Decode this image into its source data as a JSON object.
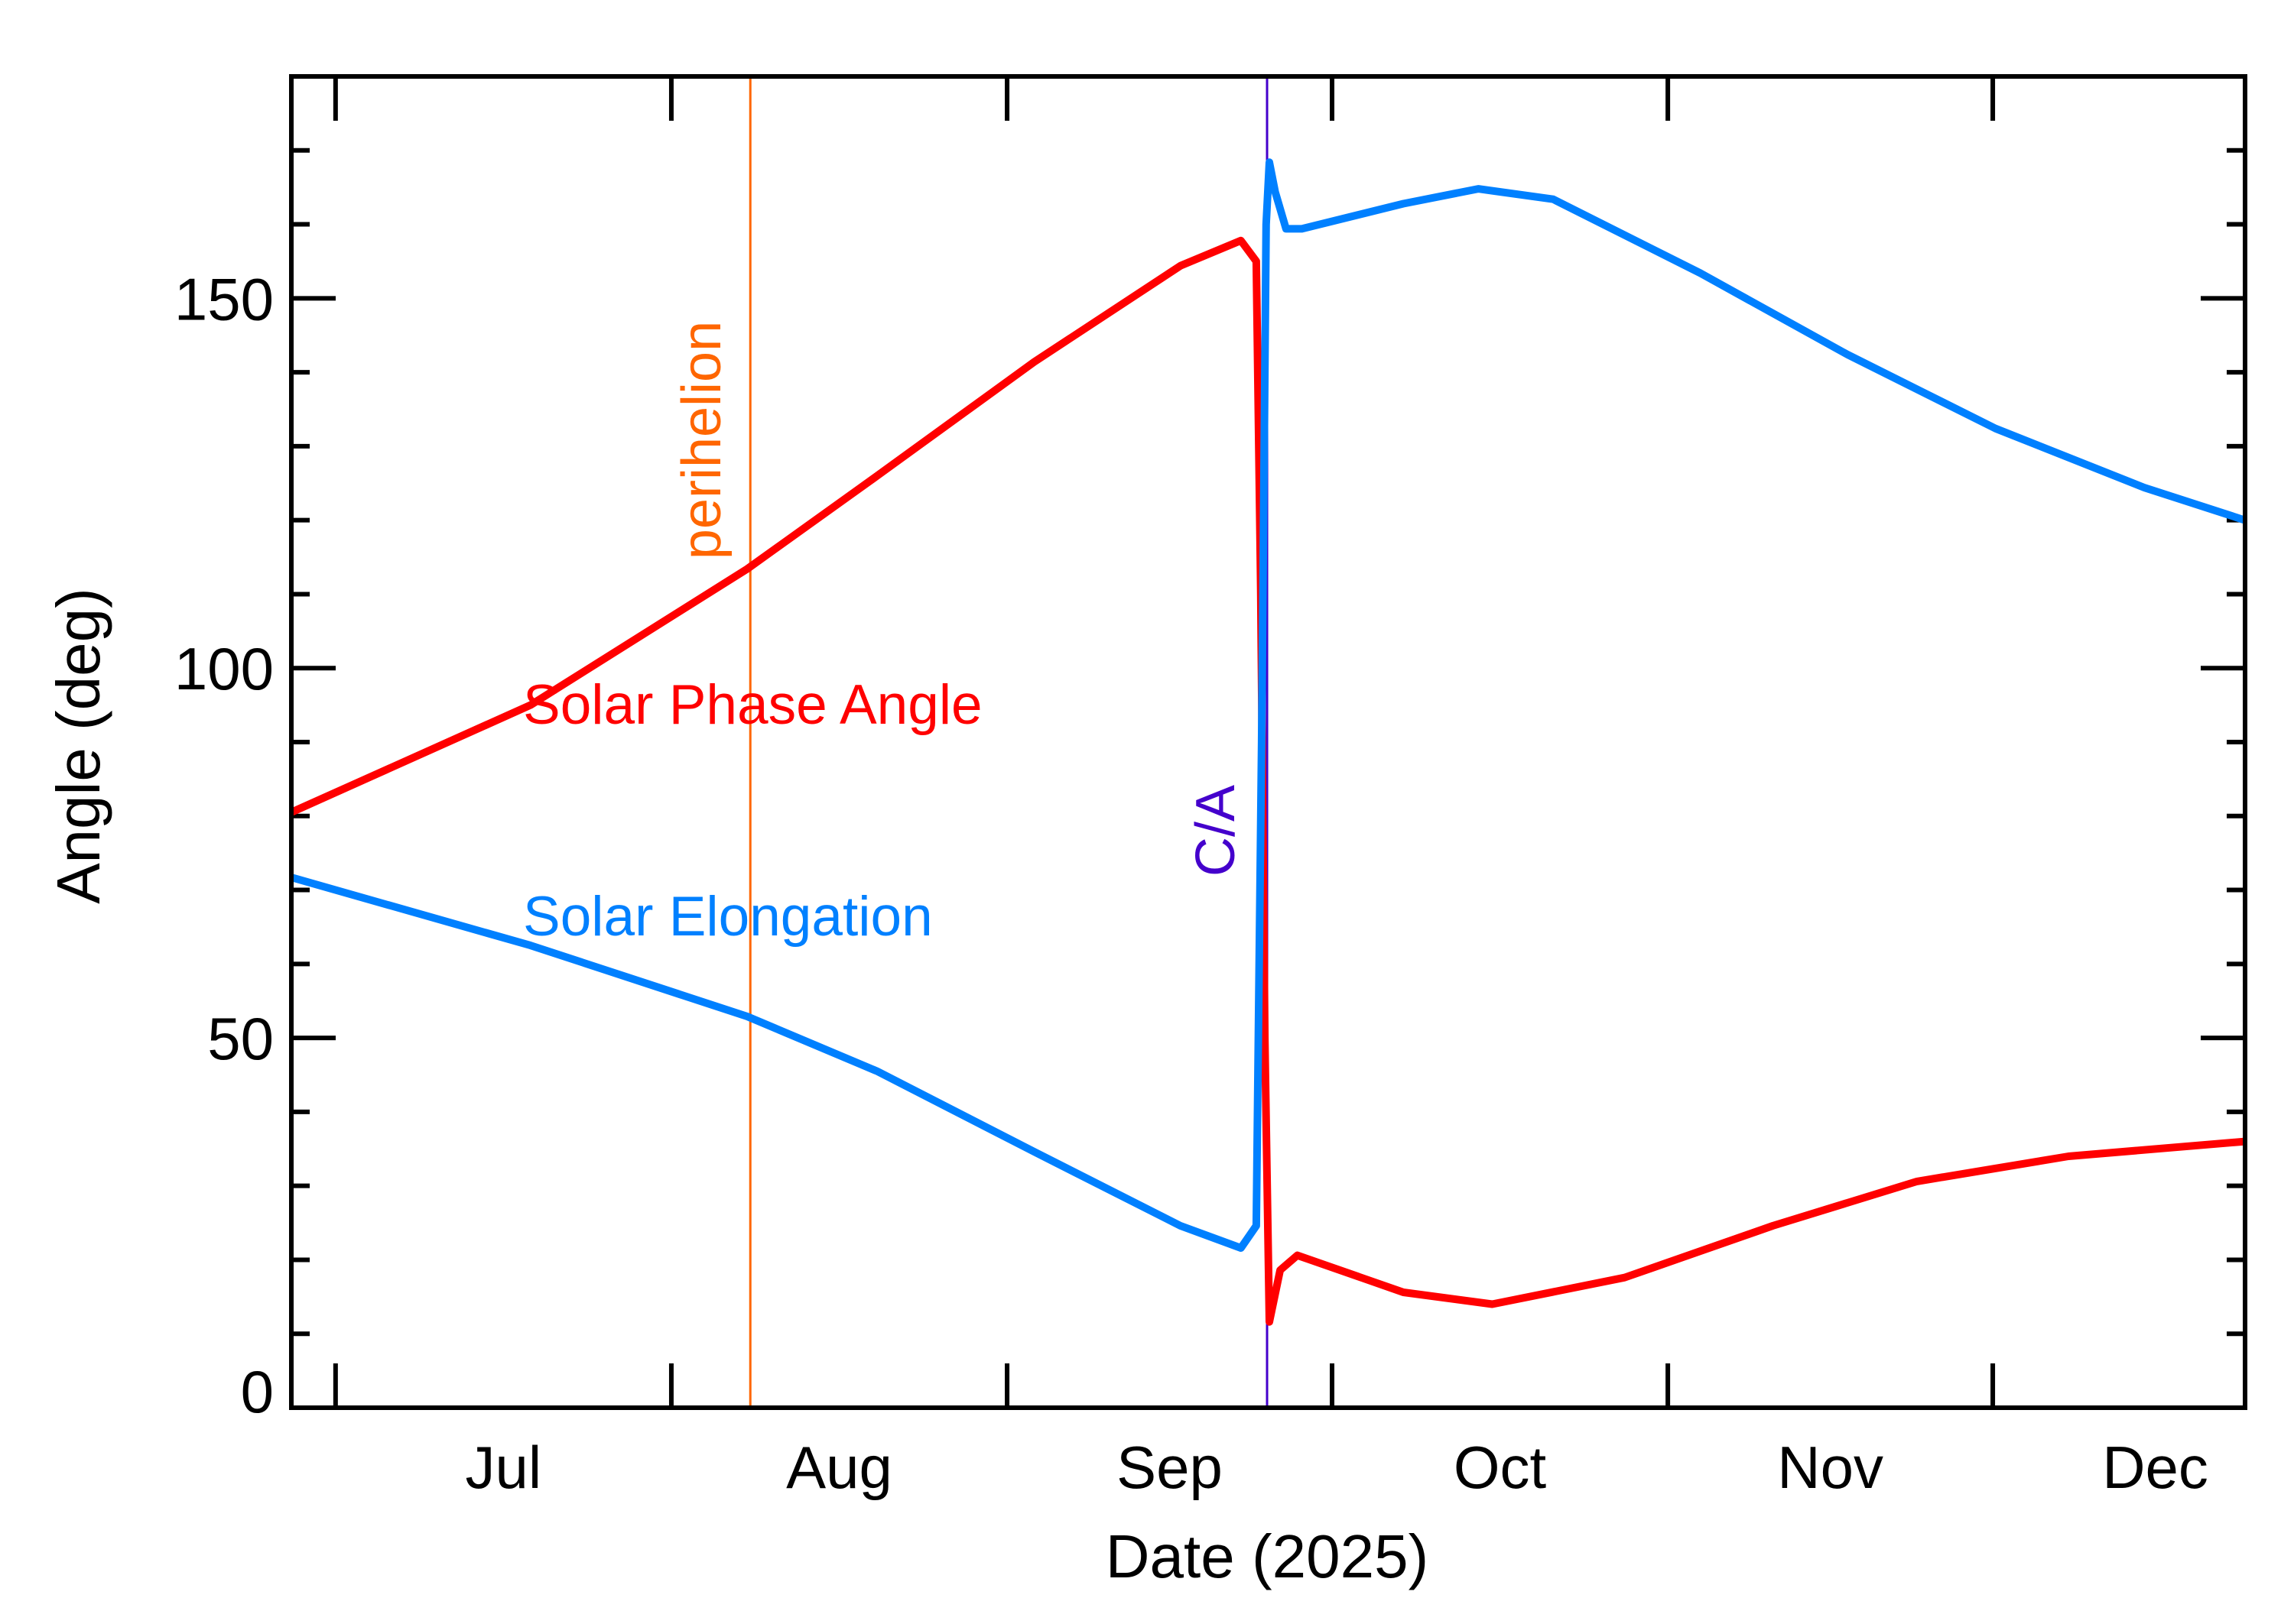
{
  "chart_data": {
    "type": "line",
    "title": "",
    "xlabel": "Date (2025)",
    "ylabel": "Angle (deg)",
    "xlim": [
      "2025-06-26T22:00",
      "2025-12-24T07:00"
    ],
    "ylim": [
      0,
      180
    ],
    "x_tick_labels": [
      "Jul",
      "Aug",
      "Sep",
      "Oct",
      "Nov",
      "Dec"
    ],
    "x_ticks": [
      "2025-07-01",
      "2025-08-01",
      "2025-09-01",
      "2025-10-01",
      "2025-11-01",
      "2025-12-01"
    ],
    "y_ticks": [
      0,
      50,
      100,
      150
    ],
    "y_tick_labels": [
      "0",
      "50",
      "100",
      "150"
    ],
    "grid": false,
    "series": [
      {
        "name": "Solar Phase Angle",
        "color": "#ff0000",
        "points": [
          [
            "2025-06-26T22:00",
            80.5
          ],
          [
            "2025-07-19",
            95
          ],
          [
            "2025-08-08",
            113.4
          ],
          [
            "2025-08-20",
            126
          ],
          [
            "2025-09-03T12:00",
            141.4
          ],
          [
            "2025-09-17",
            154.4
          ],
          [
            "2025-09-22T14:00",
            157.8
          ],
          [
            "2025-09-24T00:00",
            155
          ],
          [
            "2025-09-24T10:00",
            110
          ],
          [
            "2025-09-24T19:00",
            50
          ],
          [
            "2025-09-25T05:00",
            11.6
          ],
          [
            "2025-09-26T05:00",
            18.6
          ],
          [
            "2025-09-27T19:00",
            20.6
          ],
          [
            "2025-10-07T14:00",
            15.6
          ],
          [
            "2025-10-15T19:00",
            14
          ],
          [
            "2025-10-28",
            17.6
          ],
          [
            "2025-11-10T17:00",
            24.6
          ],
          [
            "2025-11-24",
            30.6
          ],
          [
            "2025-12-08",
            34
          ],
          [
            "2025-12-24T07:00",
            36
          ]
        ]
      },
      {
        "name": "Solar Elongation",
        "color": "#0080ff",
        "points": [
          [
            "2025-06-26T22:00",
            71.7
          ],
          [
            "2025-07-19",
            62.5
          ],
          [
            "2025-08-08",
            52.9
          ],
          [
            "2025-08-20",
            45.5
          ],
          [
            "2025-09-03T12:00",
            34.6
          ],
          [
            "2025-09-17",
            24.6
          ],
          [
            "2025-09-22T14:00",
            21.6
          ],
          [
            "2025-09-24T00:00",
            24.6
          ],
          [
            "2025-09-24T12:00",
            90
          ],
          [
            "2025-09-24T22:00",
            160
          ],
          [
            "2025-09-25T05:00",
            168.4
          ],
          [
            "2025-09-25T18:00",
            164.4
          ],
          [
            "2025-09-26T18:00",
            159.4
          ],
          [
            "2025-09-28T05:00",
            159.4
          ],
          [
            "2025-10-07T14:00",
            162.8
          ],
          [
            "2025-10-14T12:00",
            164.8
          ],
          [
            "2025-10-21T10:00",
            163.4
          ],
          [
            "2025-11-04",
            153.4
          ],
          [
            "2025-11-17T14:00",
            142.4
          ],
          [
            "2025-12-01T06:00",
            132.4
          ],
          [
            "2025-12-15",
            124.4
          ],
          [
            "2025-12-24T07:00",
            120
          ]
        ]
      }
    ],
    "annotations": [
      {
        "label": "perihelion",
        "date": "2025-08-08T07:00",
        "color": "#ff6600"
      },
      {
        "label": "C/A",
        "date": "2025-09-25T00:00",
        "color": "#4400cc"
      }
    ],
    "series_labels": [
      "Solar Phase Angle",
      "Solar Elongation"
    ]
  }
}
